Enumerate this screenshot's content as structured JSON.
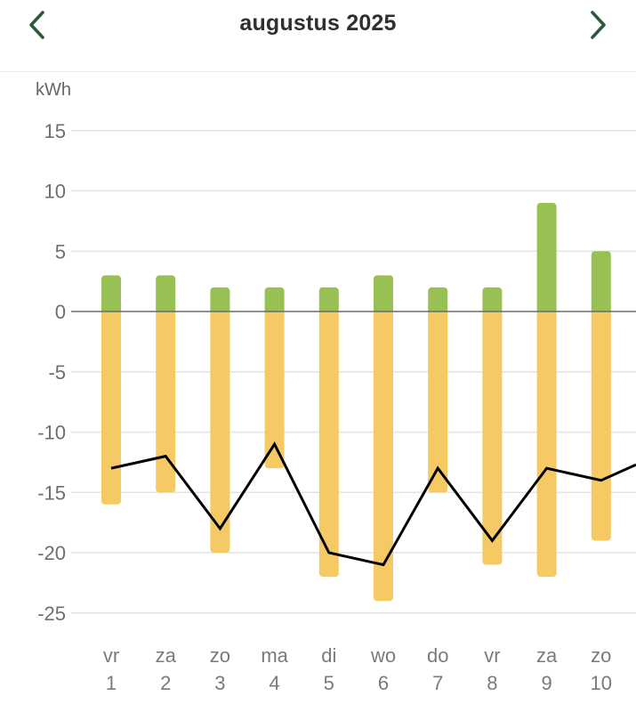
{
  "header": {
    "title": "augustus 2025",
    "prev_icon": "chevron-left-icon",
    "next_icon": "chevron-right-icon",
    "accent_color": "#2e5a3c"
  },
  "chart_data": {
    "type": "bar",
    "unit_label": "kWh",
    "y_ticks": [
      15,
      10,
      5,
      0,
      -5,
      -10,
      -15,
      -20,
      -25
    ],
    "ylim": [
      -27,
      16
    ],
    "categories": [
      {
        "day": "vr",
        "date": "1"
      },
      {
        "day": "za",
        "date": "2"
      },
      {
        "day": "zo",
        "date": "3"
      },
      {
        "day": "ma",
        "date": "4"
      },
      {
        "day": "di",
        "date": "5"
      },
      {
        "day": "wo",
        "date": "6"
      },
      {
        "day": "do",
        "date": "7"
      },
      {
        "day": "vr",
        "date": "8"
      },
      {
        "day": "za",
        "date": "9"
      },
      {
        "day": "zo",
        "date": "10"
      }
    ],
    "series": [
      {
        "type": "bar",
        "color": "#99c055",
        "values": [
          3,
          3,
          2,
          2,
          2,
          3,
          2,
          2,
          9,
          5
        ]
      },
      {
        "type": "bar",
        "color": "#f5c964",
        "values": [
          -16,
          -15,
          -20,
          -13,
          -22,
          -24,
          -15,
          -21,
          -22,
          -19
        ]
      },
      {
        "type": "line",
        "color": "#000000",
        "values": [
          -13,
          -12,
          -18,
          -11,
          -20,
          -21,
          -13,
          -19,
          -13,
          -14
        ],
        "continues_to": -12.7
      }
    ],
    "grid": true,
    "zero_line": true
  }
}
